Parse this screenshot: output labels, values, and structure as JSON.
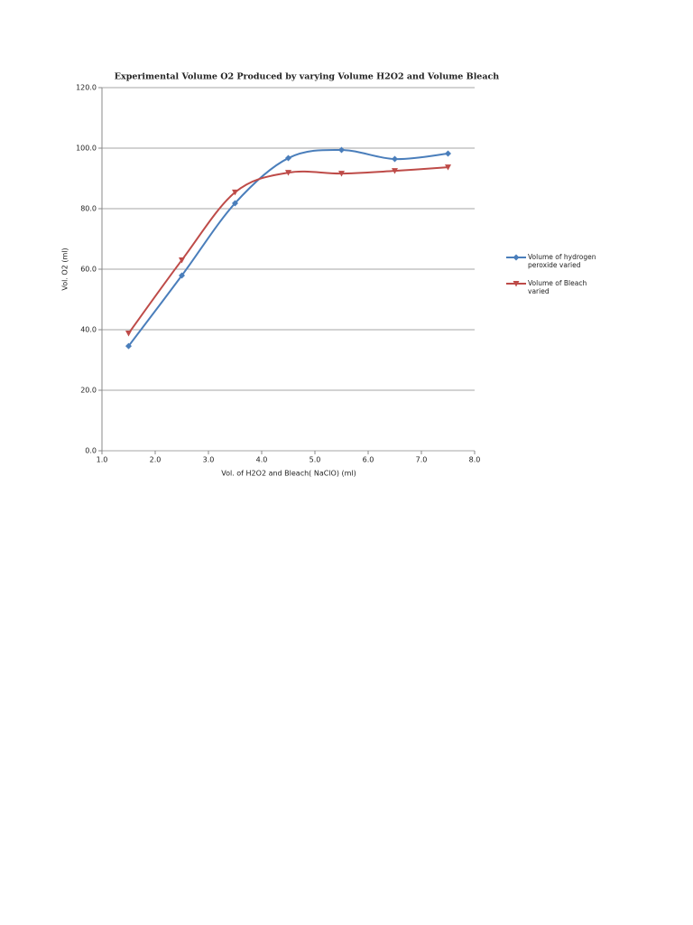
{
  "chart_data": {
    "type": "line",
    "title": "Experimental Volume O2 Produced by varying Volume H2O2 and Volume Bleach",
    "x_label": "Vol. of H2O2 and Bleach( NaClO) (ml)",
    "y_label": "Vol. O2 (ml)",
    "x": [
      1.5,
      2.5,
      3.5,
      4.5,
      5.5,
      6.5,
      7.5
    ],
    "series": [
      {
        "name": "Volume of hydrogen peroxide varied",
        "color": "#4a7ebb",
        "marker": "diamond",
        "values": [
          34.6,
          57.9,
          81.8,
          96.7,
          99.4,
          96.4,
          98.2
        ]
      },
      {
        "name": "Volume of Bleach varied",
        "color": "#be4b48",
        "marker": "triangle-down",
        "values": [
          38.8,
          63.0,
          85.4,
          91.9,
          91.6,
          92.5,
          93.7
        ]
      }
    ],
    "xlim": [
      1.0,
      8.0
    ],
    "xticks": [
      {
        "value": 1,
        "label": "1.0"
      },
      {
        "value": 2,
        "label": "2.0"
      },
      {
        "value": 3,
        "label": "3.0"
      },
      {
        "value": 4,
        "label": "4.0"
      },
      {
        "value": 5,
        "label": "5.0"
      },
      {
        "value": 6,
        "label": "6.0"
      },
      {
        "value": 7,
        "label": "7.0"
      },
      {
        "value": 8,
        "label": "8.0"
      }
    ],
    "ylim": [
      0,
      120
    ],
    "yticks": [
      {
        "value": 0,
        "label": "0.0"
      },
      {
        "value": 20,
        "label": "20.0"
      },
      {
        "value": 40,
        "label": "40.0"
      },
      {
        "value": 60,
        "label": "60.0"
      },
      {
        "value": 80,
        "label": "80.0"
      },
      {
        "value": 100,
        "label": "100.0"
      },
      {
        "value": 120,
        "label": "120.0"
      }
    ],
    "grid": true,
    "smooth": true,
    "legend": "right"
  }
}
